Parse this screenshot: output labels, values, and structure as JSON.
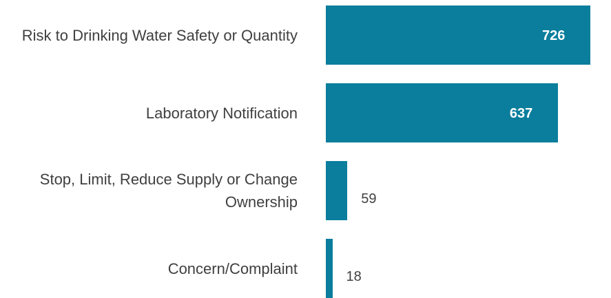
{
  "chart_data": {
    "type": "barh",
    "categories": [
      "Risk to Drinking Water Safety or Quantity",
      "Laboratory Notification",
      "Stop, Limit, Reduce Supply or Change Ownership",
      "Concern/Complaint"
    ],
    "values": [
      726,
      637,
      59,
      18
    ],
    "color": "#0a7e9c"
  }
}
